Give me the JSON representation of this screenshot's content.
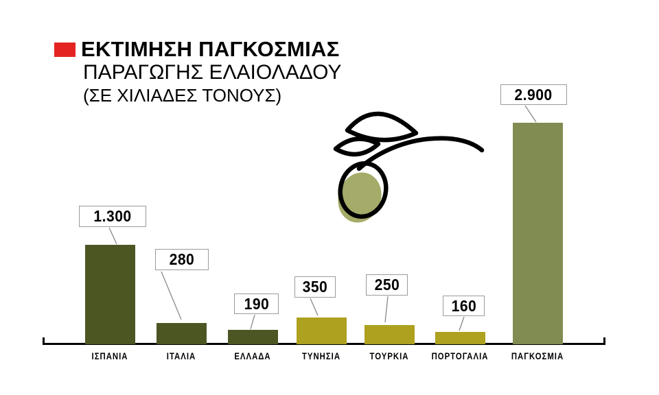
{
  "title": {
    "line1": "ΕΚΤΙΜΗΣΗ ΠΑΓΚΟΣΜΙΑΣ",
    "line2": "ΠΑΡΑΓΩΓΗΣ ΕΛΑΙΟΛΑΔΟΥ",
    "line3": "(ΣΕ ΧΙΛΙΑΔΕΣ ΤΟΝΟΥΣ)"
  },
  "colors": {
    "accent_red": "#e32421",
    "dark_green": "#4b5623",
    "olive_yellow": "#ada11f",
    "sage_green": "#808c51",
    "olive_fruit_fill": "#a5ab69",
    "outline_black": "#000000",
    "callout_border": "#9a9a9a",
    "connector_gray": "#888888"
  },
  "chart_data": {
    "type": "bar",
    "title": "ΕΚΤΙΜΗΣΗ ΠΑΓΚΟΣΜΙΑΣ ΠΑΡΑΓΩΓΗΣ ΕΛΑΙΟΛΑΔΟΥ",
    "subtitle": "(ΣΕ ΧΙΛΙΑΔΕΣ ΤΟΝΟΥΣ)",
    "xlabel": "",
    "ylabel": "",
    "units": "χιλιάδες τόνοι",
    "categories": [
      "ΙΣΠΑΝΙΑ",
      "ΙΤΑΛΙΑ",
      "ΕΛΛΑΔΑ",
      "ΤΥΝΗΣΙΑ",
      "ΤΟΥΡΚΙΑ",
      "ΠΟΡΤΟΓΑΛΙΑ",
      "ΠΑΓΚΟΣΜΙΑ"
    ],
    "values": [
      1300,
      280,
      190,
      350,
      250,
      160,
      2900
    ],
    "value_labels": [
      "1.300",
      "280",
      "190",
      "350",
      "250",
      "160",
      "2.900"
    ],
    "bar_colors": [
      "#4b5623",
      "#4b5623",
      "#4b5623",
      "#ada11f",
      "#ada11f",
      "#ada11f",
      "#808c51"
    ],
    "ylim": [
      0,
      2900
    ],
    "grid": false,
    "legend": false,
    "data_label_style": "boxed callouts with connector lines above each bar",
    "decoration": "olive-branch line illustration"
  }
}
